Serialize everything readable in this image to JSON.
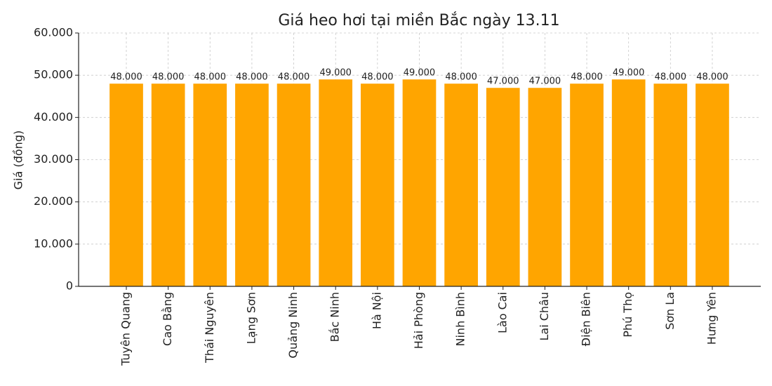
{
  "chart_data": {
    "type": "bar",
    "title": "Giá heo hơi tại miền Bắc ngày 13.11",
    "y_label": "Giá (đồng)",
    "categories": [
      "Tuyên Quang",
      "Cao Bằng",
      "Thái Nguyên",
      "Lạng Sơn",
      "Quảng Ninh",
      "Bắc Ninh",
      "Hà Nội",
      "Hải Phòng",
      "Ninh Bình",
      "Lào Cai",
      "Lai Châu",
      "Điện Biên",
      "Phú Thọ",
      "Sơn La",
      "Hưng Yên"
    ],
    "values": [
      48000,
      48000,
      48000,
      48000,
      48000,
      49000,
      48000,
      49000,
      48000,
      47000,
      47000,
      48000,
      49000,
      48000,
      48000
    ],
    "value_labels": [
      "48.000",
      "48.000",
      "48.000",
      "48.000",
      "48.000",
      "49.000",
      "48.000",
      "49.000",
      "48.000",
      "47.000",
      "47.000",
      "48.000",
      "49.000",
      "48.000",
      "48.000"
    ],
    "color": "#ffa500",
    "ylim": [
      0,
      60000
    ],
    "yticks": [
      0,
      {
        "value": 10000,
        "label": "10.000"
      },
      {
        "value": 20000,
        "label": "20.000"
      },
      {
        "value": 30000,
        "label": "30.000"
      },
      {
        "value": 40000,
        "label": "40.000"
      },
      {
        "value": 50000,
        "label": "50.000"
      },
      {
        "value": 60000,
        "label": "60.000"
      }
    ],
    "grid": true
  }
}
